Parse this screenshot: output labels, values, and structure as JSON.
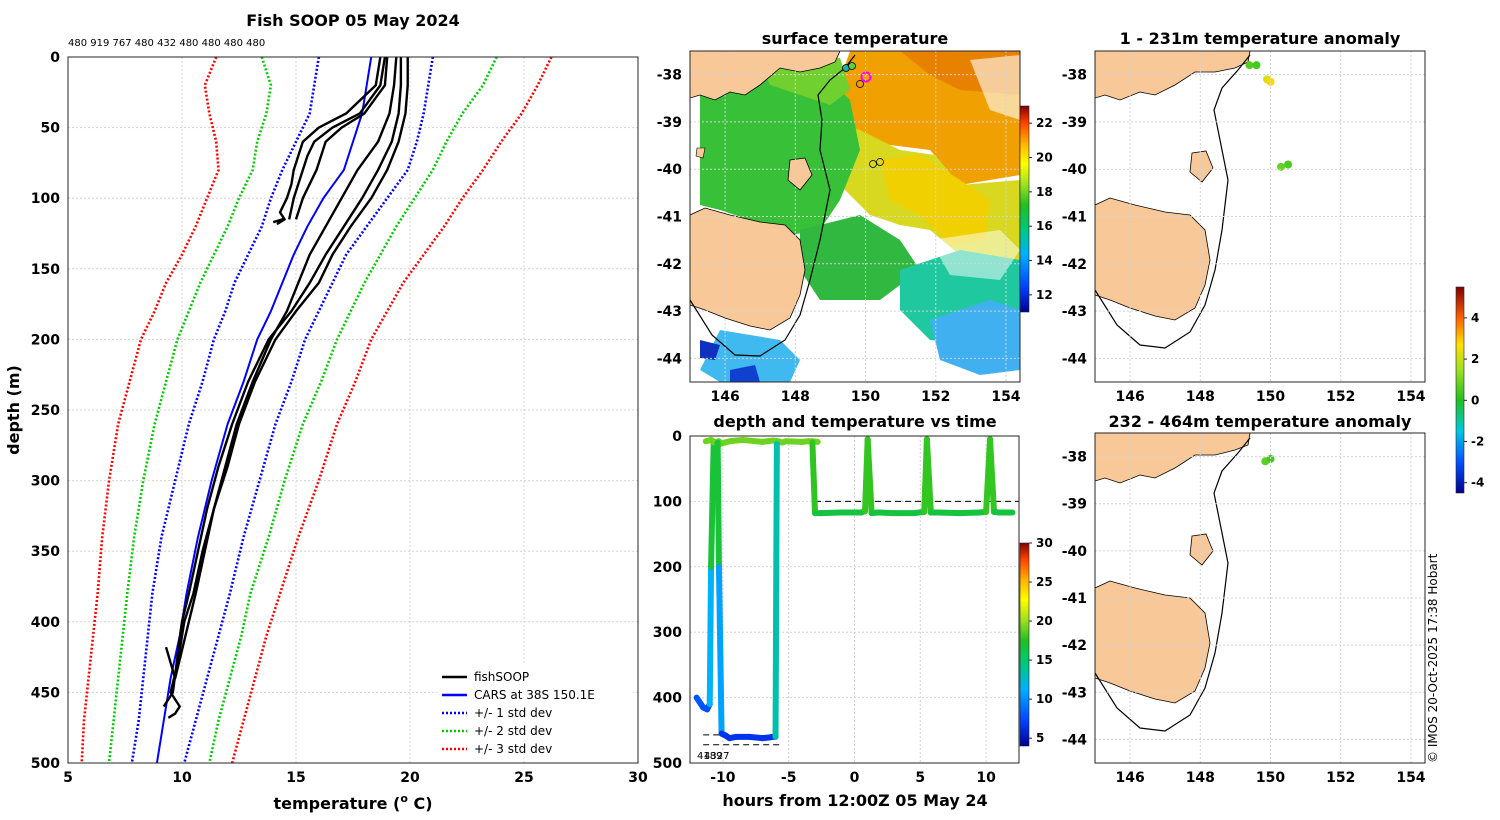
{
  "chart_data": [
    {
      "id": "profile",
      "type": "line",
      "title": "Fish SOOP 05 May 2024",
      "subtitle": "480 919 767 480 432 480 480 480 480",
      "xlabel_pre": "temperature (",
      "xlabel_sup": "o",
      "xlabel_post": " C)",
      "ylabel": "depth (m)",
      "xlim": [
        5,
        30
      ],
      "ylim": [
        0,
        500
      ],
      "xticks": [
        "5",
        "10",
        "15",
        "20",
        "25",
        "30"
      ],
      "yticks": [
        "0",
        "50",
        "100",
        "150",
        "200",
        "250",
        "300",
        "350",
        "400",
        "450",
        "500"
      ],
      "legend": [
        {
          "label": "fishSOOP",
          "color": "#000000",
          "style": "solid"
        },
        {
          "label": "CARS at 38S 150.1E",
          "color": "#0000ff",
          "style": "solid"
        },
        {
          "label": "+/- 1 std dev",
          "color": "#0000ff",
          "style": "dotted"
        },
        {
          "label": "+/- 2 std dev",
          "color": "#00cc00",
          "style": "dotted"
        },
        {
          "label": "+/- 3 std dev",
          "color": "#ff0000",
          "style": "dotted"
        }
      ],
      "series": [
        {
          "name": "CARS mean",
          "color": "#0000ff",
          "dash": "",
          "x": [
            18.3,
            18.1,
            17.9,
            17.5,
            17.1,
            16.2,
            15.5,
            14.9,
            14.4,
            13.9,
            13.3,
            12.7,
            12.0,
            11.3,
            10.7,
            10.2,
            9.9,
            9.5,
            9.2,
            8.9
          ],
          "y": [
            0,
            20,
            40,
            60,
            80,
            100,
            120,
            140,
            160,
            180,
            200,
            230,
            260,
            300,
            340,
            380,
            410,
            440,
            470,
            500
          ]
        },
        {
          "name": "+1 std",
          "color": "#0000ff",
          "dash": "2 2",
          "x": [
            21.0,
            20.8,
            20.6,
            20.3,
            19.9,
            19.0,
            18.1,
            17.2,
            16.6,
            16.0,
            15.4,
            14.8,
            14.1,
            13.4,
            12.7,
            12.1,
            11.6,
            11.1,
            10.6,
            10.1
          ],
          "y": [
            0,
            20,
            40,
            60,
            80,
            100,
            120,
            140,
            160,
            180,
            200,
            230,
            260,
            300,
            340,
            380,
            410,
            440,
            470,
            500
          ]
        },
        {
          "name": "-1 std",
          "color": "#0000ff",
          "dash": "2 2",
          "x": [
            16.0,
            15.8,
            15.6,
            15.0,
            14.4,
            13.9,
            13.5,
            12.9,
            12.3,
            11.9,
            11.4,
            10.9,
            10.3,
            9.7,
            9.1,
            8.7,
            8.5,
            8.3,
            8.1,
            7.8
          ],
          "y": [
            0,
            20,
            40,
            60,
            80,
            100,
            120,
            140,
            160,
            180,
            200,
            230,
            260,
            300,
            340,
            380,
            410,
            440,
            470,
            500
          ]
        },
        {
          "name": "+2 std",
          "color": "#00cc00",
          "dash": "2 2",
          "x": [
            23.8,
            23.2,
            22.3,
            21.6,
            21.0,
            20.2,
            19.4,
            18.7,
            18.0,
            17.4,
            16.8,
            16.1,
            15.3,
            14.5,
            13.8,
            13.0,
            12.6,
            12.1,
            11.6,
            11.2
          ],
          "y": [
            0,
            20,
            40,
            60,
            80,
            100,
            120,
            140,
            160,
            180,
            200,
            230,
            260,
            300,
            340,
            380,
            410,
            440,
            470,
            500
          ]
        },
        {
          "name": "-2 std",
          "color": "#00cc00",
          "dash": "2 2",
          "x": [
            13.5,
            13.9,
            13.7,
            13.3,
            13.1,
            12.5,
            12.0,
            11.4,
            10.8,
            10.3,
            9.8,
            9.3,
            8.8,
            8.3,
            7.9,
            7.6,
            7.4,
            7.2,
            7.0,
            6.8
          ],
          "y": [
            0,
            20,
            40,
            60,
            80,
            100,
            120,
            140,
            160,
            180,
            200,
            230,
            260,
            300,
            340,
            380,
            410,
            440,
            470,
            500
          ]
        },
        {
          "name": "+3 std",
          "color": "#ff0000",
          "dash": "2 2",
          "x": [
            26.2,
            25.6,
            24.9,
            24.0,
            23.2,
            22.3,
            21.5,
            20.6,
            19.7,
            19.0,
            18.3,
            17.6,
            16.8,
            16.0,
            15.1,
            14.3,
            13.7,
            13.2,
            12.7,
            12.2
          ],
          "y": [
            0,
            20,
            40,
            60,
            80,
            100,
            120,
            140,
            160,
            180,
            200,
            230,
            260,
            300,
            340,
            380,
            410,
            440,
            470,
            500
          ]
        },
        {
          "name": "-3 std",
          "color": "#ff0000",
          "dash": "2 2",
          "x": [
            11.5,
            11.0,
            11.2,
            11.5,
            11.6,
            11.1,
            10.6,
            10.0,
            9.3,
            8.8,
            8.2,
            7.7,
            7.2,
            6.8,
            6.5,
            6.3,
            6.1,
            5.9,
            5.7,
            5.6
          ],
          "y": [
            0,
            20,
            40,
            60,
            80,
            100,
            120,
            140,
            160,
            180,
            200,
            230,
            260,
            300,
            340,
            380,
            410,
            440,
            470,
            500
          ]
        },
        {
          "name": "fishSOOP 1",
          "color": "#000000",
          "dash": "",
          "x": [
            18.7,
            18.5,
            17.2,
            16.0,
            15.3,
            15.1,
            14.9,
            14.8,
            14.6,
            14.3,
            14.5,
            14.2,
            14.4,
            14.0
          ],
          "y": [
            0,
            20,
            40,
            50,
            60,
            70,
            80,
            90,
            100,
            110,
            115,
            118,
            115,
            117
          ],
          "width": 2.4
        },
        {
          "name": "fishSOOP 2",
          "color": "#000000",
          "dash": "",
          "x": [
            18.9,
            18.7,
            17.8,
            16.6,
            15.8,
            15.5,
            15.3,
            15.1,
            14.9,
            14.7
          ],
          "y": [
            0,
            20,
            40,
            50,
            60,
            70,
            80,
            90,
            100,
            115
          ],
          "width": 2.4
        },
        {
          "name": "fishSOOP 3",
          "color": "#000000",
          "dash": "",
          "x": [
            19.0,
            18.9,
            18.0,
            17.0,
            16.3,
            16.1,
            15.9,
            15.6,
            15.3,
            15.0
          ],
          "y": [
            0,
            20,
            40,
            50,
            60,
            70,
            80,
            90,
            100,
            115
          ],
          "width": 2.4
        },
        {
          "name": "fishSOOP deep 1",
          "color": "#000000",
          "dash": "",
          "x": [
            19.9,
            19.9,
            19.8,
            19.5,
            19.0,
            18.3,
            17.4,
            16.6,
            16.0,
            15.0,
            14.1,
            13.2,
            12.5,
            12.0,
            11.4,
            10.9,
            10.5,
            10.1,
            9.8,
            9.5,
            9.9,
            9.7,
            9.4
          ],
          "y": [
            0,
            20,
            40,
            60,
            80,
            100,
            120,
            140,
            160,
            180,
            200,
            230,
            260,
            290,
            320,
            350,
            380,
            400,
            430,
            450,
            460,
            465,
            468
          ],
          "width": 2.4
        },
        {
          "name": "fishSOOP deep 2",
          "color": "#000000",
          "dash": "",
          "x": [
            19.6,
            19.6,
            19.5,
            19.2,
            18.6,
            17.9,
            17.1,
            16.3,
            15.6,
            14.8,
            13.8,
            12.9,
            12.2,
            11.6,
            11.1,
            10.7,
            10.3,
            10.0,
            9.6,
            9.2
          ],
          "y": [
            0,
            20,
            40,
            60,
            80,
            100,
            120,
            140,
            160,
            180,
            200,
            230,
            260,
            290,
            320,
            350,
            380,
            400,
            450,
            460
          ],
          "width": 2.4
        },
        {
          "name": "fishSOOP deep 3",
          "color": "#000000",
          "dash": "",
          "x": [
            19.4,
            19.3,
            19.1,
            18.6,
            17.7,
            17.0,
            16.3,
            15.6,
            15.1,
            14.6,
            13.9,
            13.1,
            12.4,
            11.9,
            11.4,
            11.0,
            10.6,
            10.3,
            10.0,
            9.7,
            9.3
          ],
          "y": [
            0,
            20,
            40,
            60,
            80,
            100,
            120,
            140,
            160,
            180,
            200,
            230,
            260,
            290,
            320,
            350,
            380,
            400,
            420,
            440,
            418
          ],
          "width": 2.4
        }
      ]
    },
    {
      "id": "sst",
      "type": "heatmap",
      "title": "surface temperature",
      "xticks": [
        "146",
        "148",
        "150",
        "152",
        "154"
      ],
      "yticks": [
        "-38",
        "-39",
        "-40",
        "-41",
        "-42",
        "-43",
        "-44"
      ],
      "xlim": [
        145,
        154.4
      ],
      "ylim": [
        -44.5,
        -37.5
      ],
      "colorbar": {
        "ticks": [
          "12",
          "14",
          "16",
          "18",
          "20",
          "22"
        ],
        "range": [
          11,
          23
        ]
      }
    },
    {
      "id": "timeseries",
      "type": "line",
      "title": "depth and temperature vs time",
      "xlabel": "hours from 12:00Z 05 May 24",
      "xlim": [
        -12.5,
        12.5
      ],
      "ylim": [
        0,
        500
      ],
      "xticks": [
        "-10",
        "-5",
        "0",
        "5",
        "10"
      ],
      "yticks": [
        "0",
        "100",
        "200",
        "300",
        "400",
        "500"
      ],
      "labels": [
        "4189",
        "4327"
      ],
      "colorbar": {
        "ticks": [
          "5",
          "10",
          "15",
          "20",
          "25",
          "30"
        ],
        "range": [
          4,
          30
        ]
      },
      "series": [
        {
          "name": "shallow tow",
          "x": [
            -11.3,
            -10.9,
            -10.6,
            -10.3,
            -10.2,
            -9.5,
            -8.5,
            -7.0,
            -6.2,
            -5.8,
            -5.5,
            -5.2,
            -4.0,
            -3.5,
            -3.2,
            -2.8
          ],
          "y": [
            8,
            6,
            10,
            8,
            12,
            8,
            6,
            9,
            7,
            8,
            10,
            8,
            9,
            8,
            8,
            9
          ]
        },
        {
          "name": "deep tow",
          "x": [
            -12.0,
            -11.5,
            -11.2,
            -11.0,
            -10.9,
            -10.7,
            -10.4,
            -10.3,
            -10.1,
            -9.8,
            -9.5,
            -9.0,
            -8.0,
            -7.0,
            -6.5,
            -6.2,
            -6.0,
            -5.9
          ],
          "y": [
            400,
            415,
            418,
            410,
            200,
            10,
            10,
            200,
            455,
            458,
            462,
            460,
            460,
            462,
            461,
            460,
            460,
            12
          ]
        },
        {
          "name": "mid tow",
          "x": [
            -3.2,
            -3.0,
            -2.5,
            -1.0,
            0.5,
            0.8,
            1.0,
            1.3,
            1.8,
            3.0,
            4.5,
            5.3,
            5.5,
            5.8,
            6.3,
            8.0,
            9.5,
            10.0,
            10.3,
            10.6,
            11.0,
            12.0
          ],
          "y": [
            10,
            118,
            118,
            117,
            117,
            115,
            5,
            118,
            117,
            118,
            118,
            116,
            5,
            117,
            117,
            118,
            117,
            116,
            5,
            116,
            117,
            117
          ]
        }
      ],
      "ref_lines": [
        {
          "y": 100,
          "x0": -3,
          "x1": 12.5
        },
        {
          "y": 457,
          "x0": -11.5,
          "x1": -9.5
        },
        {
          "y": 472,
          "x0": -11.5,
          "x1": -5.5
        }
      ]
    },
    {
      "id": "anom_shallow",
      "type": "scatter",
      "title": "1 - 231m temperature anomaly",
      "xticks": [
        "146",
        "148",
        "150",
        "152",
        "154"
      ],
      "yticks": [
        "-38",
        "-39",
        "-40",
        "-41",
        "-42",
        "-43",
        "-44"
      ],
      "xlim": [
        145,
        154.4
      ],
      "ylim": [
        -44.5,
        -37.5
      ],
      "points": [
        {
          "x": 149.4,
          "y": -37.8,
          "v": 0.6
        },
        {
          "x": 149.6,
          "y": -37.8,
          "v": 0.4
        },
        {
          "x": 149.9,
          "y": -38.1,
          "v": 2.2
        },
        {
          "x": 150.0,
          "y": -38.15,
          "v": 2.8
        },
        {
          "x": 150.3,
          "y": -39.95,
          "v": 0.8
        },
        {
          "x": 150.5,
          "y": -39.9,
          "v": 0.5
        }
      ]
    },
    {
      "id": "anom_deep",
      "type": "scatter",
      "title": "232 - 464m temperature anomaly",
      "xticks": [
        "146",
        "148",
        "150",
        "152",
        "154"
      ],
      "yticks": [
        "-38",
        "-39",
        "-40",
        "-41",
        "-42",
        "-43",
        "-44"
      ],
      "xlim": [
        145,
        154.4
      ],
      "ylim": [
        -44.5,
        -37.5
      ],
      "points": [
        {
          "x": 149.85,
          "y": -38.1,
          "v": 0.7
        },
        {
          "x": 150.0,
          "y": -38.05,
          "v": 0.4
        }
      ],
      "colorbar": {
        "ticks": [
          "4",
          "2",
          "0",
          "-2",
          "-4"
        ],
        "range": [
          -4.5,
          5.5
        ]
      }
    }
  ],
  "credit": "© IMOS 20-Oct-2025 17:38 Hobart"
}
